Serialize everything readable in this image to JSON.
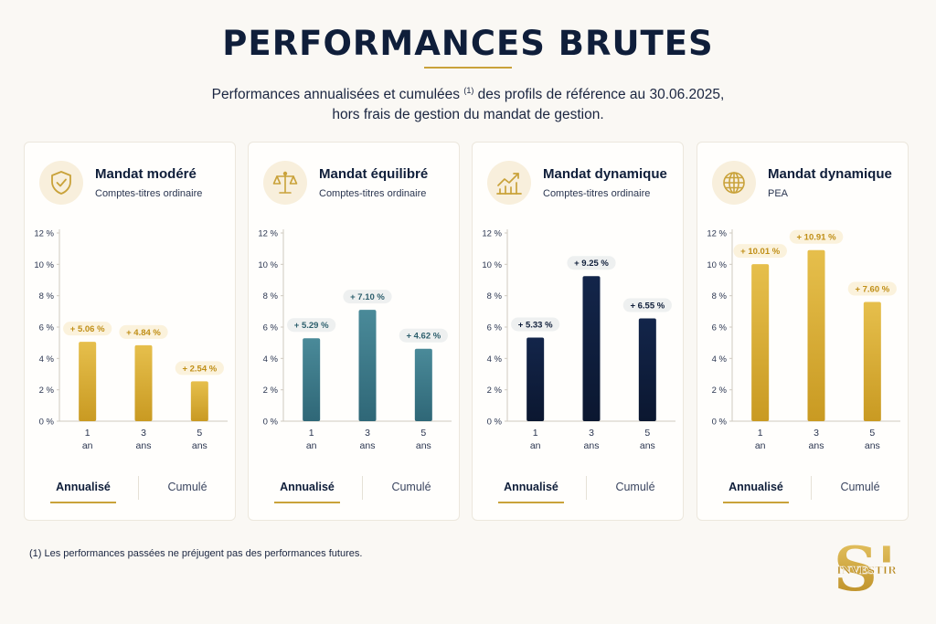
{
  "header": {
    "title": "PERFORMANCES BRUTES",
    "subtitle_line1_a": "Performances annualisées et cumulées ",
    "subtitle_sup": "(1)",
    "subtitle_line1_b": " des profils de référence au 30.06.2025,",
    "subtitle_line2": "hors frais de gestion du mandat de gestion."
  },
  "footnote": "(1) Les performances passées ne préjugent pas des performances futures.",
  "logo": {
    "text": "S'",
    "sub": "INVESTIR"
  },
  "colors": {
    "gold": "#d4a52a",
    "teal": "#3c7c8c",
    "navy": "#0f1e3a",
    "accent": "#c9a23a"
  },
  "tabs": {
    "active": "Annualisé",
    "inactive": "Cumulé"
  },
  "cards": [
    {
      "title": "Mandat modéré",
      "subtitle": "Comptes-titres ordinaire",
      "icon": "shield-check-icon"
    },
    {
      "title": "Mandat équilibré",
      "subtitle": "Comptes-titres ordinaire",
      "icon": "balance-scale-icon"
    },
    {
      "title": "Mandat dynamique",
      "subtitle": "Comptes-titres ordinaire",
      "icon": "growth-chart-icon"
    },
    {
      "title": "Mandat dynamique",
      "subtitle": "PEA",
      "icon": "globe-icon"
    }
  ],
  "chart_data": [
    {
      "type": "bar",
      "title": "Mandat modéré",
      "categories": [
        [
          "1",
          "an"
        ],
        [
          "3",
          "ans"
        ],
        [
          "5",
          "ans"
        ]
      ],
      "values": [
        5.06,
        4.84,
        2.54
      ],
      "labels": [
        "+ 5.06 %",
        "+ 4.84 %",
        "+ 2.54 %"
      ],
      "yticks": [
        "0 %",
        "2 %",
        "4 %",
        "6 %",
        "8 %",
        "10 %",
        "12 %"
      ],
      "ylim": [
        0,
        12
      ],
      "color": "gold"
    },
    {
      "type": "bar",
      "title": "Mandat équilibré",
      "categories": [
        [
          "1",
          "an"
        ],
        [
          "3",
          "ans"
        ],
        [
          "5",
          "ans"
        ]
      ],
      "values": [
        5.29,
        7.1,
        4.62
      ],
      "labels": [
        "+ 5.29 %",
        "+ 7.10 %",
        "+ 4.62 %"
      ],
      "yticks": [
        "0 %",
        "2 %",
        "4 %",
        "6 %",
        "8 %",
        "10 %",
        "12 %"
      ],
      "ylim": [
        0,
        12
      ],
      "color": "teal"
    },
    {
      "type": "bar",
      "title": "Mandat dynamique",
      "categories": [
        [
          "1",
          "an"
        ],
        [
          "3",
          "ans"
        ],
        [
          "5",
          "ans"
        ]
      ],
      "values": [
        5.33,
        9.25,
        6.55
      ],
      "labels": [
        "+ 5.33 %",
        "+ 9.25 %",
        "+ 6.55 %"
      ],
      "yticks": [
        "0 %",
        "2 %",
        "4 %",
        "6 %",
        "8 %",
        "10 %",
        "12 %"
      ],
      "ylim": [
        0,
        12
      ],
      "color": "navy"
    },
    {
      "type": "bar",
      "title": "Mandat dynamique",
      "categories": [
        [
          "1",
          "an"
        ],
        [
          "3",
          "ans"
        ],
        [
          "5",
          "ans"
        ]
      ],
      "values": [
        10.01,
        10.91,
        7.6
      ],
      "labels": [
        "+ 10.01 %",
        "+ 10.91 %",
        "+ 7.60 %"
      ],
      "yticks": [
        "0 %",
        "2 %",
        "4 %",
        "6 %",
        "8 %",
        "10 %",
        "12 %"
      ],
      "ylim": [
        0,
        12
      ],
      "color": "gold"
    }
  ]
}
